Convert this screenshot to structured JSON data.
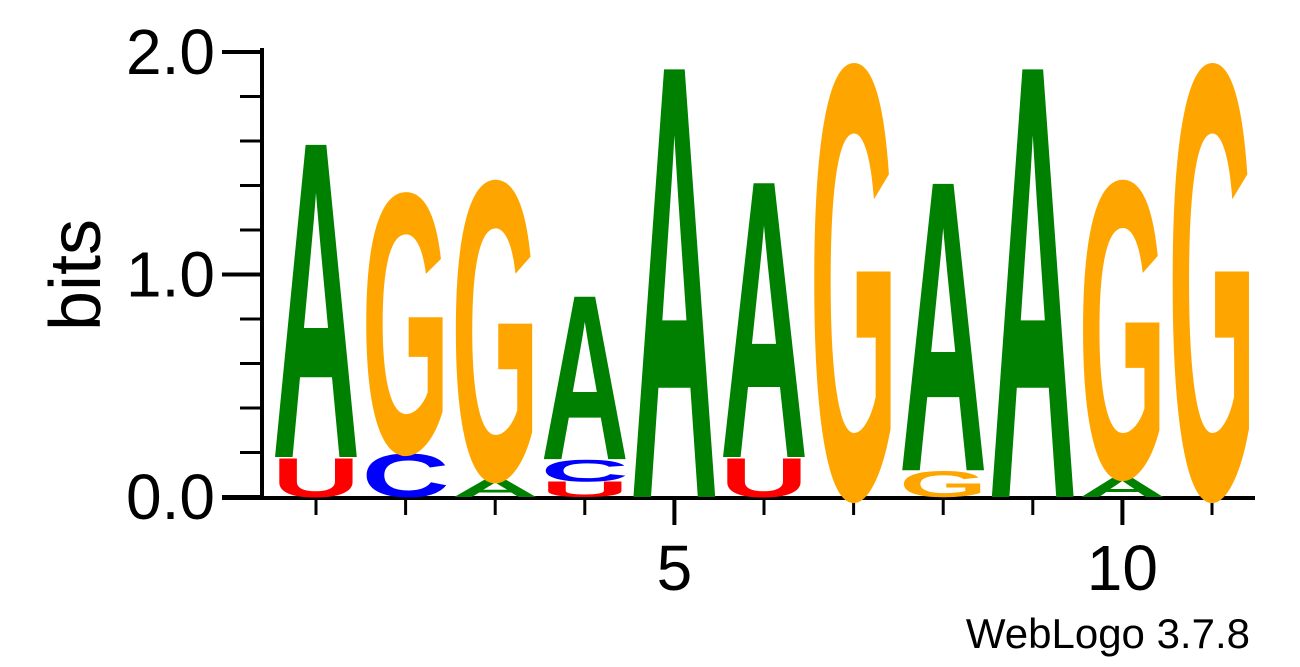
{
  "chart_data": {
    "type": "sequence-logo",
    "ylabel": "bits",
    "ylim": [
      0,
      2
    ],
    "y_ticks": [
      {
        "value": 0,
        "label": "0.0"
      },
      {
        "value": 1,
        "label": "1.0"
      },
      {
        "value": 2,
        "label": "2.0"
      }
    ],
    "y_minor_step": 0.2,
    "x_major_ticks": [
      {
        "position": 5,
        "label": "5"
      },
      {
        "position": 10,
        "label": "10"
      }
    ],
    "footer": "WebLogo 3.7.8",
    "colors": {
      "A": "#008000",
      "C": "#0000ff",
      "G": "#ffa500",
      "U": "#ff0000"
    },
    "positions": [
      {
        "position": 1,
        "stack": [
          {
            "letter": "U",
            "bits": 0.18
          },
          {
            "letter": "A",
            "bits": 1.46
          }
        ]
      },
      {
        "position": 2,
        "stack": [
          {
            "letter": "C",
            "bits": 0.2
          },
          {
            "letter": "G",
            "bits": 1.2
          }
        ]
      },
      {
        "position": 3,
        "stack": [
          {
            "letter": "A",
            "bits": 0.08
          },
          {
            "letter": "G",
            "bits": 1.38
          }
        ]
      },
      {
        "position": 4,
        "stack": [
          {
            "letter": "U",
            "bits": 0.07
          },
          {
            "letter": "C",
            "bits": 0.1
          },
          {
            "letter": "A",
            "bits": 0.76
          }
        ]
      },
      {
        "position": 5,
        "stack": [
          {
            "letter": "A",
            "bits": 2.0
          }
        ]
      },
      {
        "position": 6,
        "stack": [
          {
            "letter": "U",
            "bits": 0.18
          },
          {
            "letter": "A",
            "bits": 1.28
          }
        ]
      },
      {
        "position": 7,
        "stack": [
          {
            "letter": "G",
            "bits": 2.0
          }
        ]
      },
      {
        "position": 8,
        "stack": [
          {
            "letter": "G",
            "bits": 0.12
          },
          {
            "letter": "A",
            "bits": 1.34
          }
        ]
      },
      {
        "position": 9,
        "stack": [
          {
            "letter": "A",
            "bits": 2.0
          }
        ]
      },
      {
        "position": 10,
        "stack": [
          {
            "letter": "A",
            "bits": 0.09
          },
          {
            "letter": "G",
            "bits": 1.37
          }
        ]
      },
      {
        "position": 11,
        "stack": [
          {
            "letter": "G",
            "bits": 2.0
          }
        ]
      }
    ]
  }
}
